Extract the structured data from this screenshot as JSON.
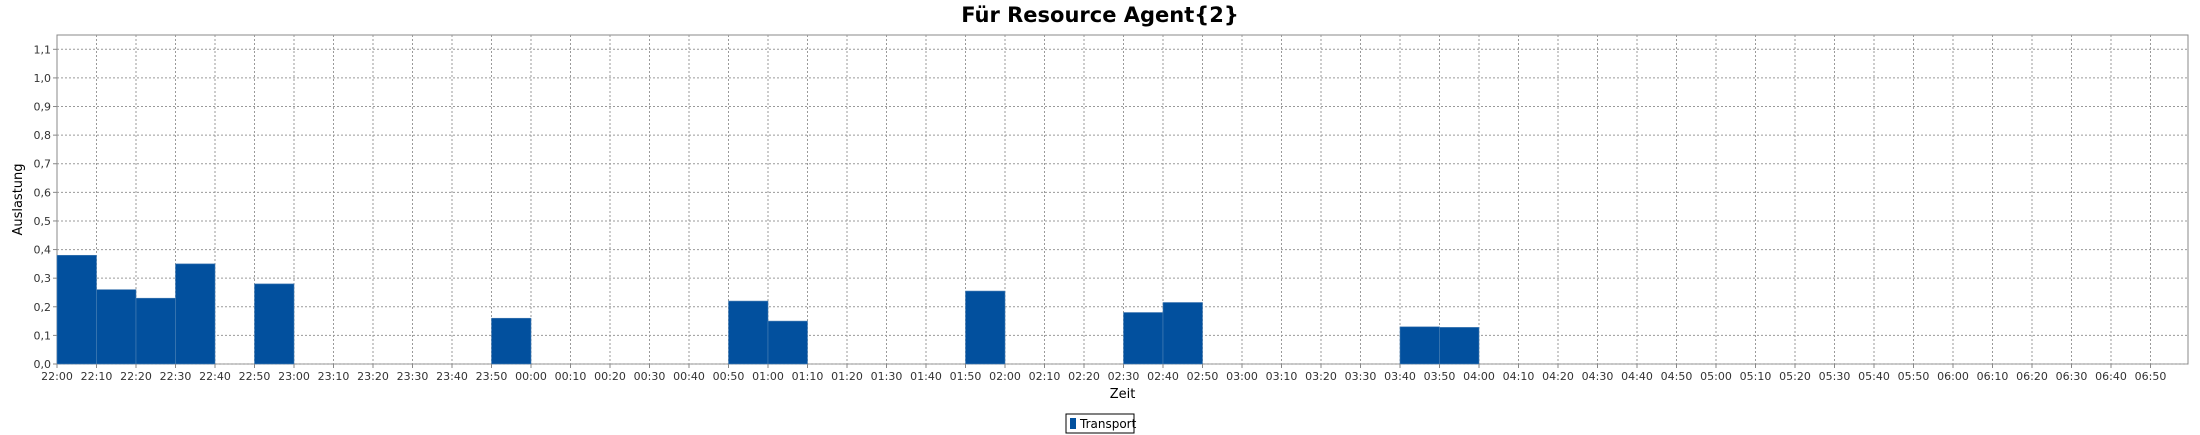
{
  "chart_data": {
    "type": "bar",
    "title": "Für Resource Agent{2}",
    "xlabel": "Zeit",
    "ylabel": "Auslastung",
    "ylim": [
      0,
      1.15
    ],
    "yticks": [
      0.0,
      0.1,
      0.2,
      0.3,
      0.4,
      0.5,
      0.6,
      0.7,
      0.8,
      0.9,
      1.0,
      1.1
    ],
    "ytick_labels": [
      "0,0",
      "0,1",
      "0,2",
      "0,3",
      "0,4",
      "0,5",
      "0,6",
      "0,7",
      "0,8",
      "0,9",
      "1,0",
      "1,1"
    ],
    "categories": [
      "22:00",
      "22:10",
      "22:20",
      "22:30",
      "22:40",
      "22:50",
      "23:00",
      "23:10",
      "23:20",
      "23:30",
      "23:40",
      "23:50",
      "00:00",
      "00:10",
      "00:20",
      "00:30",
      "00:40",
      "00:50",
      "01:00",
      "01:10",
      "01:20",
      "01:30",
      "01:40",
      "01:50",
      "02:00",
      "02:10",
      "02:20",
      "02:30",
      "02:40",
      "02:50",
      "03:00",
      "03:10",
      "03:20",
      "03:30",
      "03:40",
      "03:50",
      "04:00",
      "04:10",
      "04:20",
      "04:30",
      "04:40",
      "04:50",
      "05:00",
      "05:10",
      "05:20",
      "05:30",
      "05:40",
      "05:50",
      "06:00",
      "06:10",
      "06:20",
      "06:30",
      "06:40",
      "06:50"
    ],
    "series": [
      {
        "name": "Transport",
        "color": "#02509e",
        "values": [
          0.38,
          0.26,
          0.23,
          0.35,
          0,
          0.28,
          0,
          0,
          0,
          0,
          0,
          0.16,
          0,
          0,
          0,
          0,
          0,
          0.22,
          0.15,
          0,
          0,
          0,
          0,
          0.255,
          0,
          0,
          0,
          0.18,
          0.215,
          0,
          0,
          0,
          0,
          0,
          0.13,
          0.128,
          0,
          0,
          0,
          0,
          0,
          0,
          0,
          0,
          0,
          0,
          0,
          0,
          0,
          0,
          0,
          0,
          0,
          0
        ]
      }
    ],
    "grid": true,
    "legend_position": "bottom-center"
  }
}
